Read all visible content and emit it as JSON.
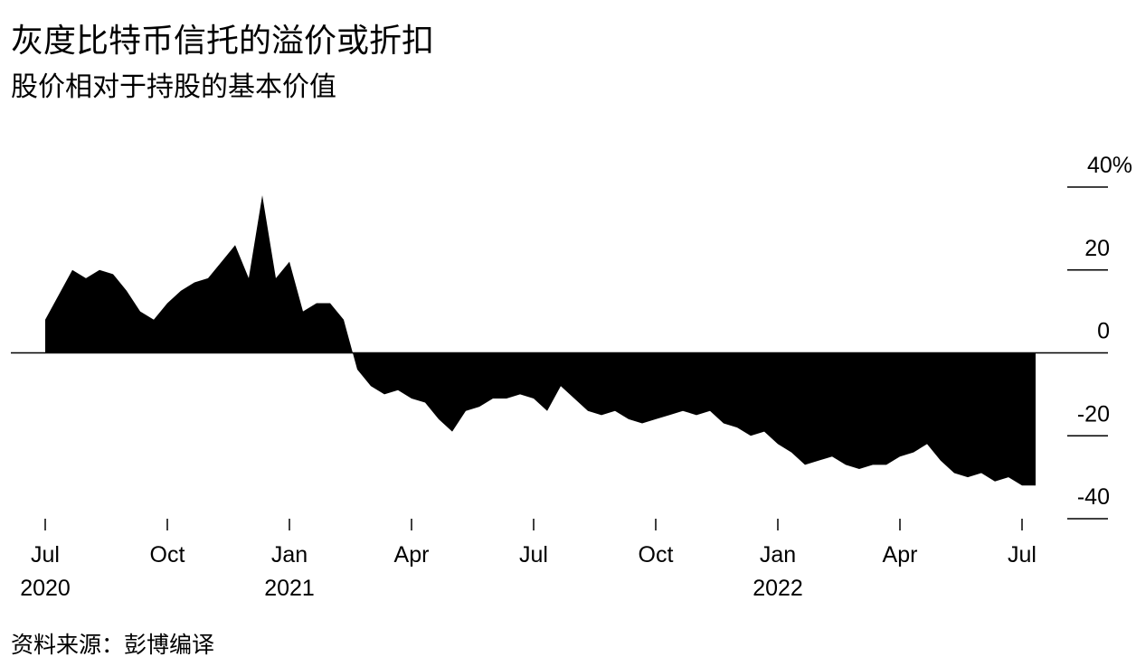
{
  "chart_data": {
    "type": "area",
    "title": "灰度比特币信托的溢价或折扣",
    "subtitle": "股价相对于持股的基本价值",
    "source": "资料来源：彭博编译",
    "color": "#000000",
    "categories": [
      "Jul",
      null,
      null,
      null,
      null,
      null,
      null,
      null,
      null,
      "Oct",
      null,
      null,
      null,
      null,
      null,
      null,
      null,
      null,
      "Jan",
      null,
      null,
      null,
      null,
      null,
      null,
      null,
      null,
      "Apr",
      null,
      null,
      null,
      null,
      null,
      null,
      null,
      null,
      "Jul",
      null,
      null,
      null,
      null,
      null,
      null,
      null,
      null,
      "Oct",
      null,
      null,
      null,
      null,
      null,
      null,
      null,
      null,
      "Jan",
      null,
      null,
      null,
      null,
      null,
      null,
      null,
      null,
      "Apr",
      null,
      null,
      null,
      null,
      null,
      null,
      null,
      null,
      "Jul",
      null
    ],
    "category_years": [
      "2020",
      null,
      null,
      null,
      null,
      null,
      null,
      null,
      null,
      null,
      null,
      null,
      null,
      null,
      null,
      null,
      null,
      null,
      "2021",
      null,
      null,
      null,
      null,
      null,
      null,
      null,
      null,
      null,
      null,
      null,
      null,
      null,
      null,
      null,
      null,
      null,
      null,
      null,
      null,
      null,
      null,
      null,
      null,
      null,
      null,
      null,
      null,
      null,
      null,
      null,
      null,
      null,
      null,
      null,
      "2022",
      null,
      null,
      null,
      null,
      null,
      null,
      null,
      null,
      null,
      null,
      null,
      null,
      null,
      null,
      null,
      null,
      null,
      null,
      null
    ],
    "values": [
      8,
      14,
      20,
      18,
      20,
      19,
      15,
      10,
      8,
      12,
      15,
      17,
      18,
      22,
      26,
      18,
      38,
      18,
      22,
      10,
      12,
      12,
      8,
      -4,
      -8,
      -10,
      -9,
      -11,
      -12,
      -16,
      -19,
      -14,
      -13,
      -11,
      -11,
      -10,
      -11,
      -14,
      -8,
      -11,
      -14,
      -15,
      -14,
      -16,
      -17,
      -16,
      -15,
      -14,
      -15,
      -14,
      -17,
      -18,
      -20,
      -19,
      -22,
      -24,
      -27,
      -26,
      -25,
      -27,
      -28,
      -27,
      -27,
      -25,
      -24,
      -22,
      -26,
      -29,
      -30,
      -29,
      -31,
      -30,
      -32,
      -32
    ],
    "ylim": [
      -40,
      40
    ],
    "yticks": [
      {
        "value": 40,
        "label": "40%"
      },
      20,
      0,
      -20,
      -40
    ]
  }
}
